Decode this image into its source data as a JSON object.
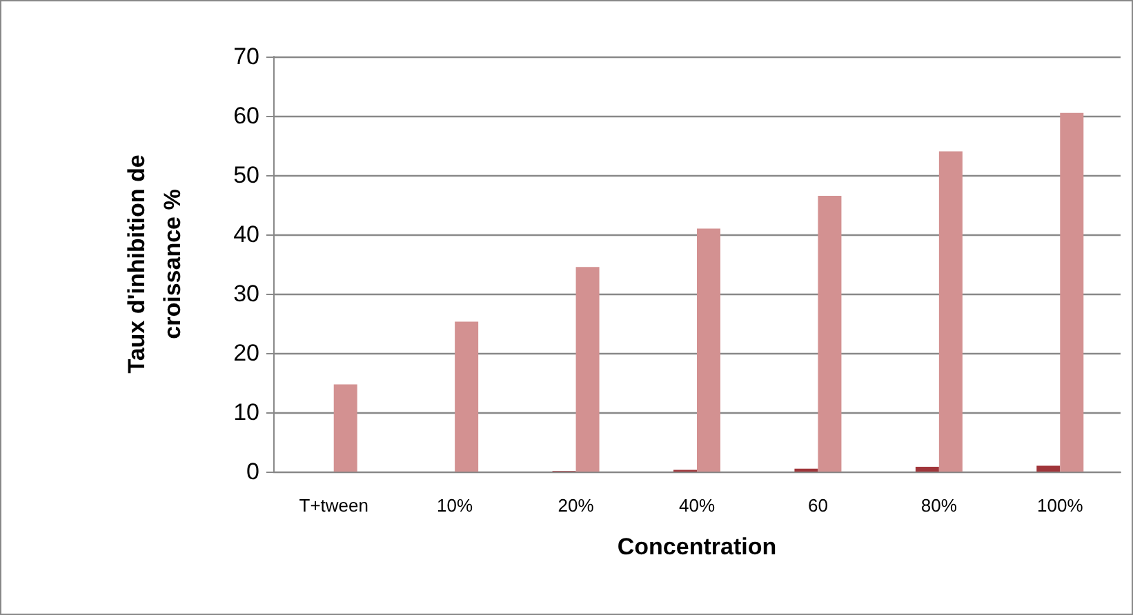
{
  "chart_data": {
    "type": "bar",
    "xlabel": "Concentration",
    "ylabel": "Taux d'inhibition de\ncroissance %",
    "categories": [
      "T+tween",
      "10%",
      "20%",
      "40%",
      "60",
      "80%",
      "100%"
    ],
    "series": [
      {
        "color": "#a0353a",
        "values": [
          0,
          0,
          0.1,
          0.3,
          0.5,
          0.8,
          1.0
        ]
      },
      {
        "color": "#d39191",
        "values": [
          14.7,
          25.3,
          34.5,
          41,
          46.5,
          54,
          60.5
        ]
      }
    ],
    "ylim": [
      0,
      70
    ],
    "yticks": [
      0,
      10,
      20,
      30,
      40,
      50,
      60,
      70
    ],
    "grid": "y"
  }
}
